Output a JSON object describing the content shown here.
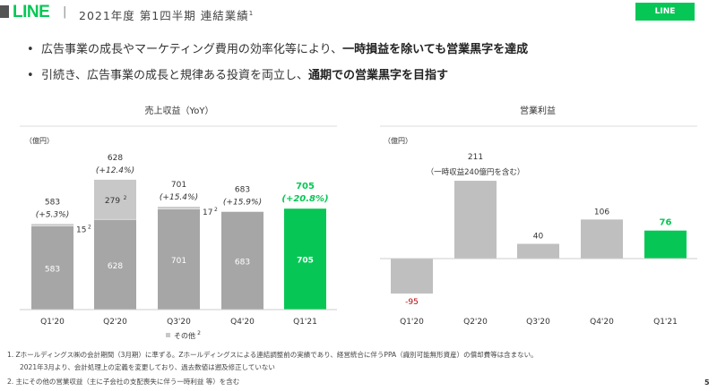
{
  "header": {
    "logo": "LINE",
    "separator": "|",
    "title": "2021年度 第1四半期 連結業績",
    "title_sup": "1",
    "badge": "LINE"
  },
  "bullets": [
    {
      "normal": "広告事業の成長やマーケティング費用の効率化等により、",
      "bold": "一時損益を除いても営業黒字を達成"
    },
    {
      "normal": "引続き、広告事業の成長と規律ある投資を両立し、",
      "bold": "通期での営業黒字を目指す"
    }
  ],
  "chart_data": [
    {
      "type": "bar",
      "title": "売上収益（YoY）",
      "ylabel": "（億円）",
      "categories": [
        "Q1'20",
        "Q2'20",
        "Q3'20",
        "Q4'20",
        "Q1'21"
      ],
      "series": [
        {
          "name": "main",
          "values": [
            583,
            628,
            701,
            683,
            705
          ]
        },
        {
          "name": "その他",
          "values": [
            15,
            279,
            17,
            0,
            0
          ]
        }
      ],
      "totals": [
        "583",
        "628",
        "701",
        "683",
        "705"
      ],
      "yoy": [
        "(+5.3%)",
        "(+12.4%)",
        "(+15.4%)",
        "(+15.9%)",
        "(+20.8%)"
      ],
      "other_labels": [
        "15",
        "279",
        "17",
        "",
        ""
      ],
      "other_sup": "2",
      "legend": "その他",
      "legend_sup": "2",
      "highlight_index": 4
    },
    {
      "type": "bar",
      "title": "営業利益",
      "ylabel": "（億円）",
      "categories": [
        "Q1'20",
        "Q2'20",
        "Q3'20",
        "Q4'20",
        "Q1'21"
      ],
      "values": [
        -95,
        211,
        40,
        106,
        76
      ],
      "labels": [
        "-95",
        "211",
        "40",
        "106",
        "76"
      ],
      "annotation": "（一時収益240億円を含む）",
      "highlight_index": 4
    }
  ],
  "colors": {
    "accent": "#06c755",
    "bar": "#a6a6a6",
    "bar_other": "#c8c8c8",
    "bar_right": "#bfbfbf",
    "negative": "#c00000"
  },
  "footnotes": [
    "1. Zホールディングス㈱の会計期間（3月期）に準ずる。Zホールディングスによる連結調整前の実績であり、経営統合に伴うPPA（識別可能無形資産）の償却費等は含まない。",
    "2021年3月より、会計処理上の定義を変更しており、過去数値は遡及修正していない",
    "2. 主にその他の営業収益（主に子会社の支配喪失に伴う一時利益 等）を含む"
  ],
  "page_number": "5"
}
